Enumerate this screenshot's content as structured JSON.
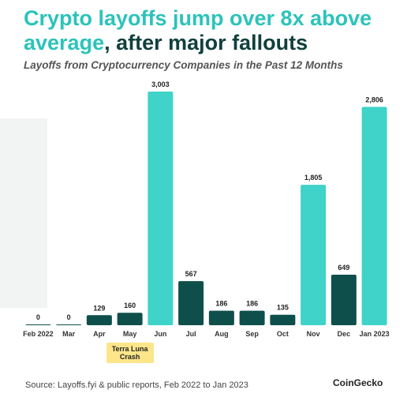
{
  "chart_data": {
    "type": "bar",
    "title_highlight": "Crypto layoffs jump over 8x above average",
    "title_rest": ", after major fallouts",
    "subtitle": "Layoffs from Cryptocurrency Companies in the Past 12 Months",
    "categories": [
      "Feb 2022",
      "Mar",
      "Apr",
      "May",
      "Jun",
      "Jul",
      "Aug",
      "Sep",
      "Oct",
      "Nov",
      "Dec",
      "Jan 2023"
    ],
    "values": [
      0,
      0,
      129,
      160,
      3003,
      567,
      186,
      186,
      135,
      1805,
      649,
      2806
    ],
    "value_labels": [
      "0",
      "0",
      "129",
      "160",
      "3,003",
      "567",
      "186",
      "186",
      "135",
      "1,805",
      "649",
      "2,806"
    ],
    "colors": [
      "#0f4f4b",
      "#0f4f4b",
      "#0f4f4b",
      "#0f4f4b",
      "#3fd3c9",
      "#0f4f4b",
      "#0f4f4b",
      "#0f4f4b",
      "#0f4f4b",
      "#3fd3c9",
      "#0f4f4b",
      "#3fd3c9"
    ],
    "ylim": [
      0,
      3003
    ],
    "annotations": [
      {
        "text": "Terra Luna Crash",
        "category": 3
      }
    ],
    "source": "Source: Layoffs.fyi & public reports, Feb 2022 to Jan 2023",
    "brand": "CoinGecko"
  }
}
